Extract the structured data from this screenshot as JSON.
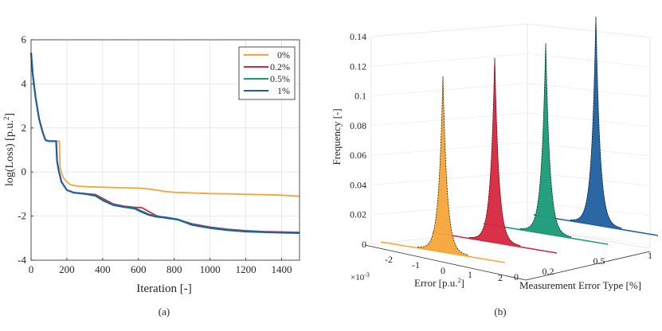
{
  "chart_data": [
    {
      "type": "line",
      "panel_label": "(a)",
      "xlabel": "Iteration [-]",
      "ylabel": "log(Loss)  [p.u.",
      "ylabel_sup": "2",
      "ylabel_close": "]",
      "xlim": [
        0,
        1500
      ],
      "ylim": [
        -4,
        6
      ],
      "xticks": [
        0,
        200,
        400,
        600,
        800,
        1000,
        1200,
        1400
      ],
      "yticks": [
        -4,
        -2,
        0,
        2,
        4,
        6
      ],
      "grid": true,
      "legend_position": "top-right",
      "series": [
        {
          "name": "0%",
          "color": "#f5a53a",
          "points": [
            [
              0,
              5.4
            ],
            [
              10,
              4.4
            ],
            [
              25,
              3.4
            ],
            [
              45,
              2.4
            ],
            [
              65,
              1.8
            ],
            [
              80,
              1.45
            ],
            [
              100,
              1.4
            ],
            [
              130,
              1.4
            ],
            [
              150,
              1.4
            ],
            [
              158,
              1.4
            ],
            [
              162,
              0.2
            ],
            [
              170,
              -0.05
            ],
            [
              180,
              -0.25
            ],
            [
              200,
              -0.45
            ],
            [
              220,
              -0.58
            ],
            [
              260,
              -0.64
            ],
            [
              320,
              -0.67
            ],
            [
              400,
              -0.69
            ],
            [
              500,
              -0.71
            ],
            [
              600,
              -0.73
            ],
            [
              650,
              -0.76
            ],
            [
              700,
              -0.82
            ],
            [
              750,
              -0.88
            ],
            [
              800,
              -0.92
            ],
            [
              900,
              -0.95
            ],
            [
              1000,
              -0.98
            ],
            [
              1100,
              -0.99
            ],
            [
              1200,
              -1.01
            ],
            [
              1300,
              -1.03
            ],
            [
              1400,
              -1.05
            ],
            [
              1500,
              -1.1
            ]
          ]
        },
        {
          "name": "0.2%",
          "color": "#d7263d",
          "points": [
            [
              0,
              5.4
            ],
            [
              10,
              4.4
            ],
            [
              25,
              3.4
            ],
            [
              45,
              2.4
            ],
            [
              65,
              1.8
            ],
            [
              80,
              1.45
            ],
            [
              100,
              1.4
            ],
            [
              130,
              1.4
            ],
            [
              140,
              1.4
            ],
            [
              145,
              0.5
            ],
            [
              155,
              0.05
            ],
            [
              170,
              -0.45
            ],
            [
              200,
              -0.82
            ],
            [
              240,
              -0.94
            ],
            [
              300,
              -0.98
            ],
            [
              360,
              -1.02
            ],
            [
              400,
              -1.2
            ],
            [
              460,
              -1.45
            ],
            [
              520,
              -1.55
            ],
            [
              580,
              -1.6
            ],
            [
              620,
              -1.62
            ],
            [
              660,
              -1.8
            ],
            [
              700,
              -1.98
            ],
            [
              760,
              -2.1
            ],
            [
              820,
              -2.16
            ],
            [
              900,
              -2.35
            ],
            [
              1000,
              -2.5
            ],
            [
              1100,
              -2.6
            ],
            [
              1200,
              -2.66
            ],
            [
              1300,
              -2.7
            ],
            [
              1400,
              -2.72
            ],
            [
              1500,
              -2.74
            ]
          ]
        },
        {
          "name": "0.5%",
          "color": "#1a9a78",
          "points": [
            [
              0,
              5.4
            ],
            [
              10,
              4.4
            ],
            [
              25,
              3.4
            ],
            [
              45,
              2.4
            ],
            [
              65,
              1.8
            ],
            [
              80,
              1.45
            ],
            [
              100,
              1.4
            ],
            [
              130,
              1.4
            ],
            [
              140,
              1.4
            ],
            [
              145,
              0.5
            ],
            [
              155,
              0.05
            ],
            [
              170,
              -0.45
            ],
            [
              200,
              -0.82
            ],
            [
              240,
              -0.94
            ],
            [
              300,
              -0.98
            ],
            [
              360,
              -1.06
            ],
            [
              400,
              -1.25
            ],
            [
              460,
              -1.48
            ],
            [
              520,
              -1.57
            ],
            [
              580,
              -1.63
            ],
            [
              620,
              -1.78
            ],
            [
              660,
              -1.92
            ],
            [
              700,
              -2.0
            ],
            [
              760,
              -2.06
            ],
            [
              820,
              -2.14
            ],
            [
              900,
              -2.38
            ],
            [
              1000,
              -2.52
            ],
            [
              1100,
              -2.62
            ],
            [
              1200,
              -2.68
            ],
            [
              1300,
              -2.72
            ],
            [
              1400,
              -2.74
            ],
            [
              1500,
              -2.76
            ]
          ]
        },
        {
          "name": "1%",
          "color": "#1f5fa0",
          "points": [
            [
              0,
              5.4
            ],
            [
              10,
              4.4
            ],
            [
              25,
              3.4
            ],
            [
              45,
              2.4
            ],
            [
              65,
              1.8
            ],
            [
              80,
              1.45
            ],
            [
              100,
              1.4
            ],
            [
              130,
              1.4
            ],
            [
              140,
              1.4
            ],
            [
              145,
              0.5
            ],
            [
              155,
              0.05
            ],
            [
              170,
              -0.45
            ],
            [
              200,
              -0.82
            ],
            [
              240,
              -0.94
            ],
            [
              300,
              -0.99
            ],
            [
              360,
              -1.08
            ],
            [
              400,
              -1.28
            ],
            [
              460,
              -1.5
            ],
            [
              520,
              -1.59
            ],
            [
              580,
              -1.66
            ],
            [
              620,
              -1.82
            ],
            [
              660,
              -1.95
            ],
            [
              700,
              -2.03
            ],
            [
              760,
              -2.08
            ],
            [
              820,
              -2.16
            ],
            [
              900,
              -2.4
            ],
            [
              1000,
              -2.54
            ],
            [
              1100,
              -2.64
            ],
            [
              1200,
              -2.7
            ],
            [
              1300,
              -2.73
            ],
            [
              1400,
              -2.75
            ],
            [
              1500,
              -2.77
            ]
          ]
        }
      ]
    },
    {
      "type": "area",
      "projection": "3d",
      "panel_label": "(b)",
      "zlabel": "Frequency [-]",
      "xlabel": "Error  [p.u.",
      "xlabel_sup": "2",
      "xlabel_close": "]",
      "x_multiplier": "×10",
      "x_multiplier_exp": "-3",
      "ylabel": "Measurement Error Type [%]",
      "zticks": [
        "0",
        "0.02",
        "0.04",
        "0.06",
        "0.08",
        "0.1",
        "0.12",
        "0.14"
      ],
      "xticks": [
        "-2",
        "-1",
        "0",
        "1",
        "2"
      ],
      "yticks": [
        "0",
        "0.2",
        "0.5",
        "1"
      ],
      "series": [
        {
          "name": "0",
          "color": "#f5a53a",
          "peak": 0.118
        },
        {
          "name": "0.2",
          "color": "#d7263d",
          "peak": 0.124
        },
        {
          "name": "0.5",
          "color": "#1a9a78",
          "peak": 0.128
        },
        {
          "name": "1",
          "color": "#1f5fa0",
          "peak": 0.14
        }
      ]
    }
  ]
}
